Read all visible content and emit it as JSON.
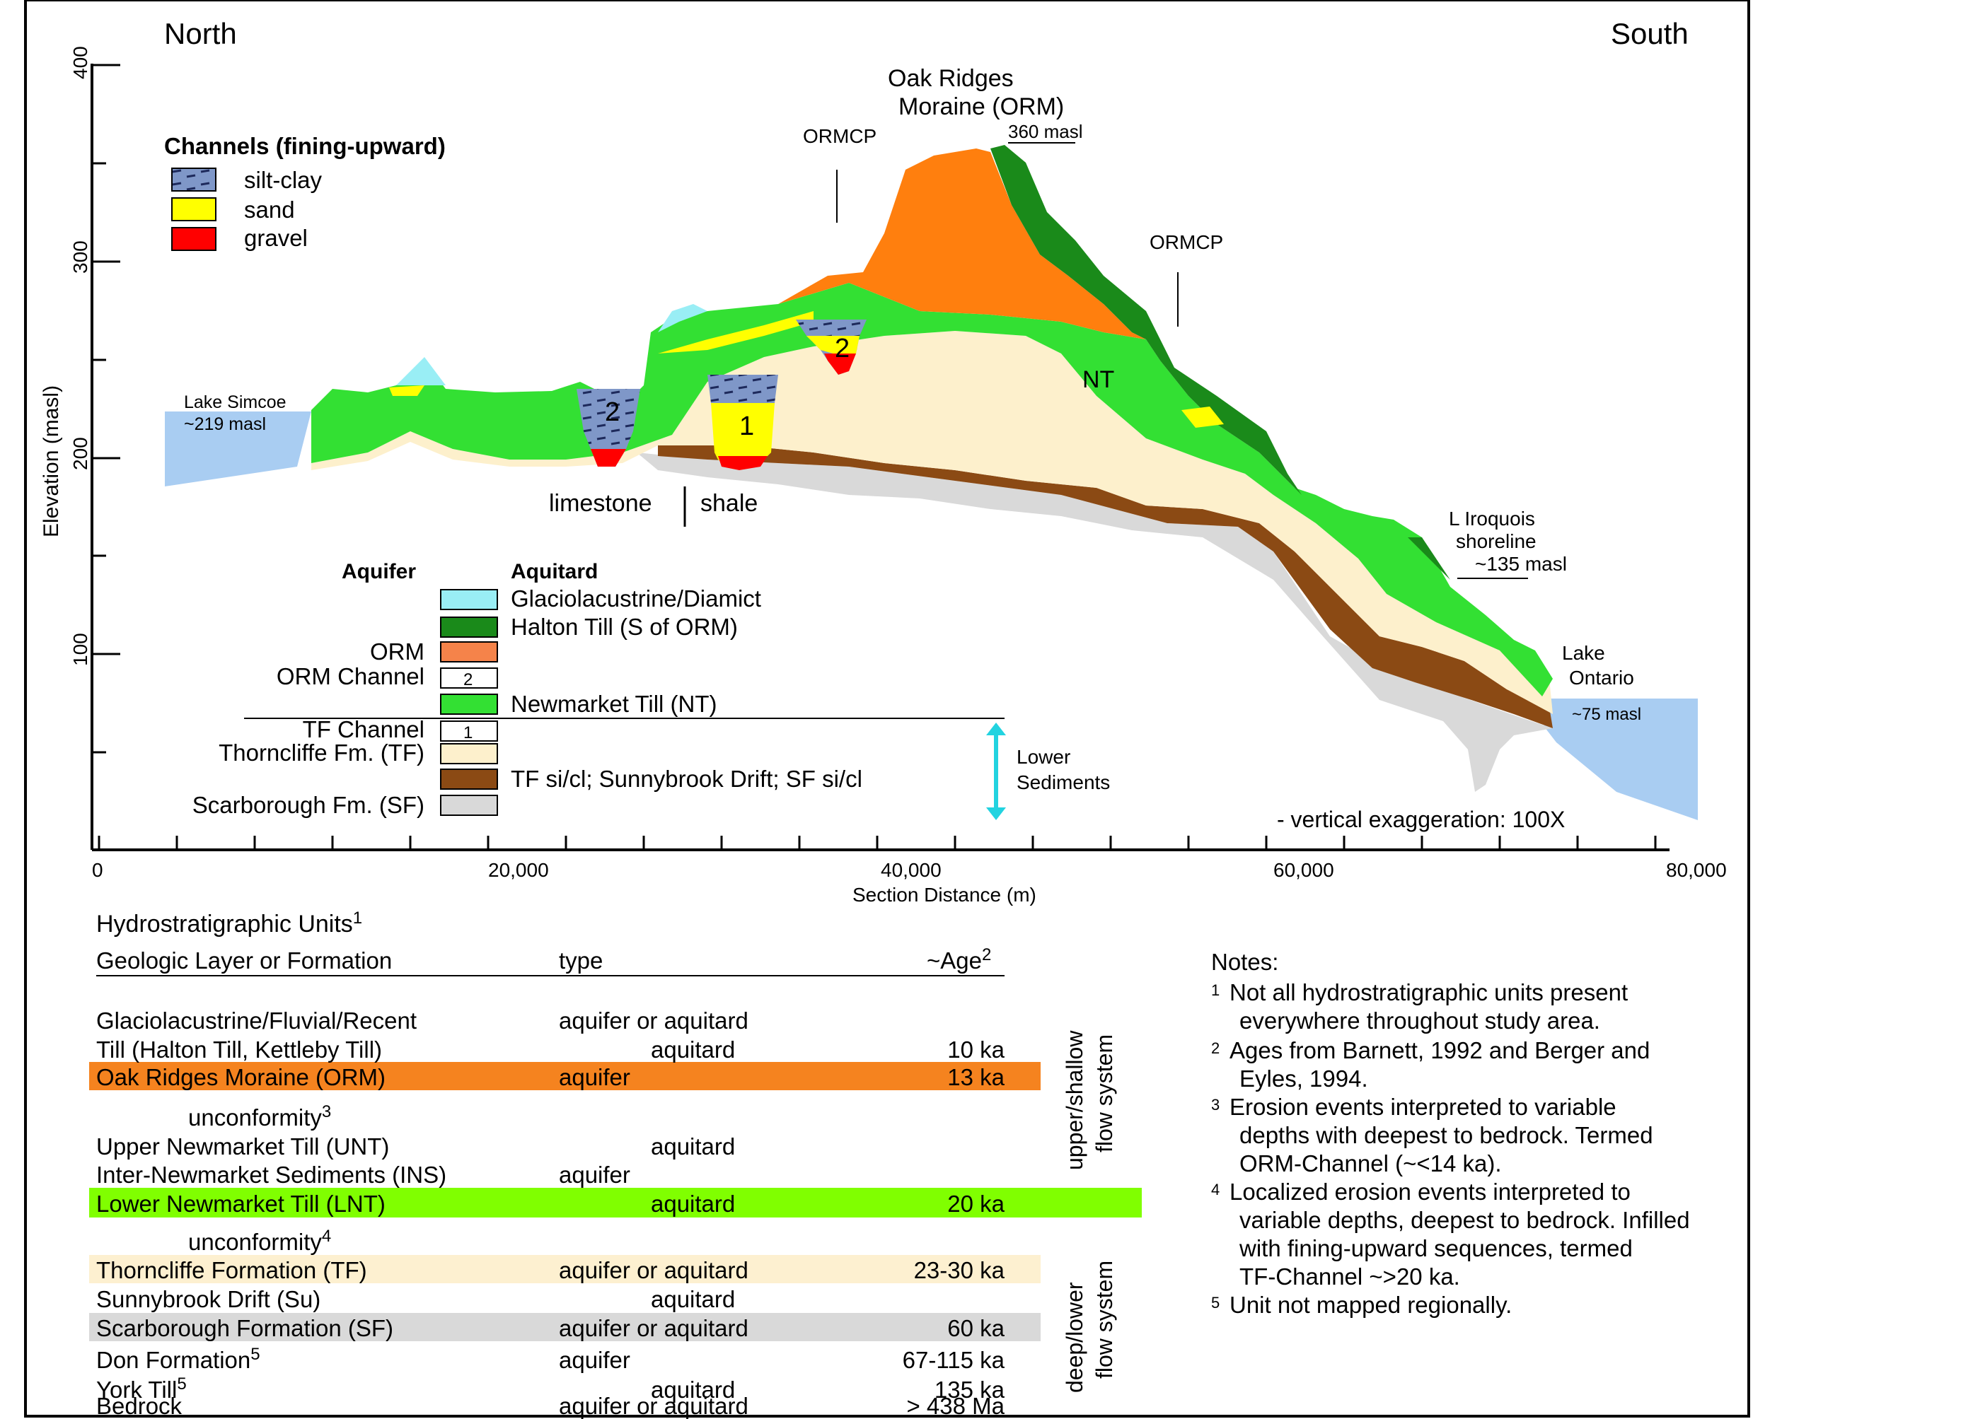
{
  "section": {
    "north": "North",
    "south": "South",
    "y_axis": {
      "label": "Elevation (masl)",
      "ticks": [
        "100",
        "200",
        "300",
        "400"
      ]
    },
    "x_axis": {
      "label": "Section Distance (m)",
      "ticks": [
        "0",
        "20,000",
        "40,000",
        "60,000",
        "80,000"
      ]
    },
    "channels_legend": {
      "title": "Channels (fining-upward)",
      "items": [
        {
          "label": "silt-clay",
          "color": "#7f97c8"
        },
        {
          "label": "sand",
          "color": "#ffff00"
        },
        {
          "label": "gravel",
          "color": "#ff0000"
        }
      ]
    },
    "annotations": {
      "orm_title_1": "Oak Ridges",
      "orm_title_2": "Moraine (ORM)",
      "orm_elev": "360 masl",
      "ormcp_left": "ORMCP",
      "ormcp_right": "ORMCP",
      "nt": "NT",
      "lake_simcoe_1": "Lake Simcoe",
      "lake_simcoe_2": "~219 masl",
      "limestone": "limestone",
      "shale": "shale",
      "iroquois_1": "L Iroquois",
      "iroquois_2": "shoreline",
      "iroquois_3": "~135 masl",
      "lake_ontario_1": "Lake",
      "lake_ontario_2": "Ontario",
      "lake_ontario_3": "~75 masl",
      "vert_exag": "- vertical exaggeration: 100X",
      "channel_1": "1",
      "channel_2a": "2",
      "channel_2b": "2"
    },
    "units_legend": {
      "aquifer_header": "Aquifer",
      "aquitard_header": "Aquitard",
      "rows": [
        {
          "left": "",
          "right": "Glaciolacustrine/Diamict",
          "color": "#99eef5",
          "box": ""
        },
        {
          "left": "",
          "right": "Halton Till (S of ORM)",
          "color": "#1a8a1a",
          "box": ""
        },
        {
          "left": "ORM",
          "right": "",
          "color": "#f5834a",
          "box": ""
        },
        {
          "left": "ORM Channel",
          "right": "",
          "color": "#ffffff",
          "box": "2"
        },
        {
          "left": "",
          "right": "Newmarket Till (NT)",
          "color": "#33e033",
          "box": ""
        },
        {
          "left": "TF Channel",
          "right": "",
          "color": "#ffffff",
          "box": "1"
        },
        {
          "left": "Thorncliffe Fm. (TF)",
          "right": "",
          "color": "#fdf0cc",
          "box": ""
        },
        {
          "left": "",
          "right": "TF si/cl; Sunnybrook Drift; SF si/cl",
          "color": "#8b4a14",
          "box": ""
        },
        {
          "left": "Scarborough Fm. (SF)",
          "right": "",
          "color": "#d9d9d9",
          "box": ""
        }
      ],
      "lower_sediments_1": "Lower",
      "lower_sediments_2": "Sediments"
    }
  },
  "table": {
    "title": "Hydrostratigraphic Units",
    "title_sup": "1",
    "col_layer": "Geologic Layer or Formation",
    "col_type": "type",
    "col_age": "~Age",
    "col_age_sup": "2",
    "rows": [
      {
        "name": "Glaciolacustrine/Fluvial/Recent",
        "sup": "",
        "type": "aquifer or aquitard",
        "age": "",
        "bg": ""
      },
      {
        "name": "Till (Halton Till, Kettleby Till)",
        "sup": "",
        "type": "aquitard",
        "age": "10 ka",
        "bg": ""
      },
      {
        "name": "Oak Ridges Moraine (ORM)",
        "sup": "",
        "type": "aquifer",
        "age": "13 ka",
        "bg": "#f5831f"
      },
      {
        "name": "unconformity",
        "sup": "3",
        "type": "",
        "age": "",
        "bg": ""
      },
      {
        "name": "Upper Newmarket Till (UNT)",
        "sup": "",
        "type": "aquitard",
        "age": "",
        "bg": ""
      },
      {
        "name": "Inter-Newmarket Sediments (INS)",
        "sup": "",
        "type": "aquifer",
        "age": "",
        "bg": ""
      },
      {
        "name": "Lower Newmarket Till (LNT)",
        "sup": "",
        "type": "aquitard",
        "age": "20 ka",
        "bg": "#80ff00"
      },
      {
        "name": "unconformity",
        "sup": "4",
        "type": "",
        "age": "",
        "bg": ""
      },
      {
        "name": "Thorncliffe Formation (TF)",
        "sup": "",
        "type": "aquifer or aquitard",
        "age": "23-30 ka",
        "bg": "#fdf0d0"
      },
      {
        "name": "Sunnybrook Drift (Su)",
        "sup": "",
        "type": "aquitard",
        "age": "",
        "bg": ""
      },
      {
        "name": "Scarborough Formation (SF)",
        "sup": "",
        "type": "aquifer or aquitard",
        "age": "60 ka",
        "bg": "#d9d9d9"
      },
      {
        "name": "Don Formation",
        "sup": "5",
        "type": "aquifer",
        "age": "67-115 ka",
        "bg": ""
      },
      {
        "name": "York Till",
        "sup": "5",
        "type": "aquitard",
        "age": "135 ka",
        "bg": ""
      },
      {
        "name": "Bedrock",
        "sup": "",
        "type": "aquifer or aquitard",
        "age": "> 438 Ma",
        "bg": ""
      }
    ],
    "upper_system_1": "upper/shallow",
    "upper_system_2": "flow system",
    "lower_system_1": "deep/lower",
    "lower_system_2": "flow system"
  },
  "notes": {
    "title": "Notes:",
    "items": [
      {
        "sup": "1",
        "line1": "Not all hydrostratigraphic units present",
        "line2": "everywhere throughout study area.",
        "line3": "",
        "line4": ""
      },
      {
        "sup": "2",
        "line1": "Ages from Barnett, 1992 and Berger and",
        "line2": "Eyles, 1994.",
        "line3": "",
        "line4": ""
      },
      {
        "sup": "3",
        "line1": "Erosion events interpreted to variable",
        "line2": "depths with deepest to bedrock. Termed",
        "line3": "ORM-Channel (~<14 ka).",
        "line4": ""
      },
      {
        "sup": "4",
        "line1": "Localized erosion events interpreted to",
        "line2": "variable depths, deepest to bedrock. Infilled",
        "line3": "with fining-upward sequences, termed",
        "line4": "TF-Channel ~>20 ka."
      },
      {
        "sup": "5",
        "line1": "Unit not mapped regionally.",
        "line2": "",
        "line3": "",
        "line4": ""
      }
    ]
  }
}
